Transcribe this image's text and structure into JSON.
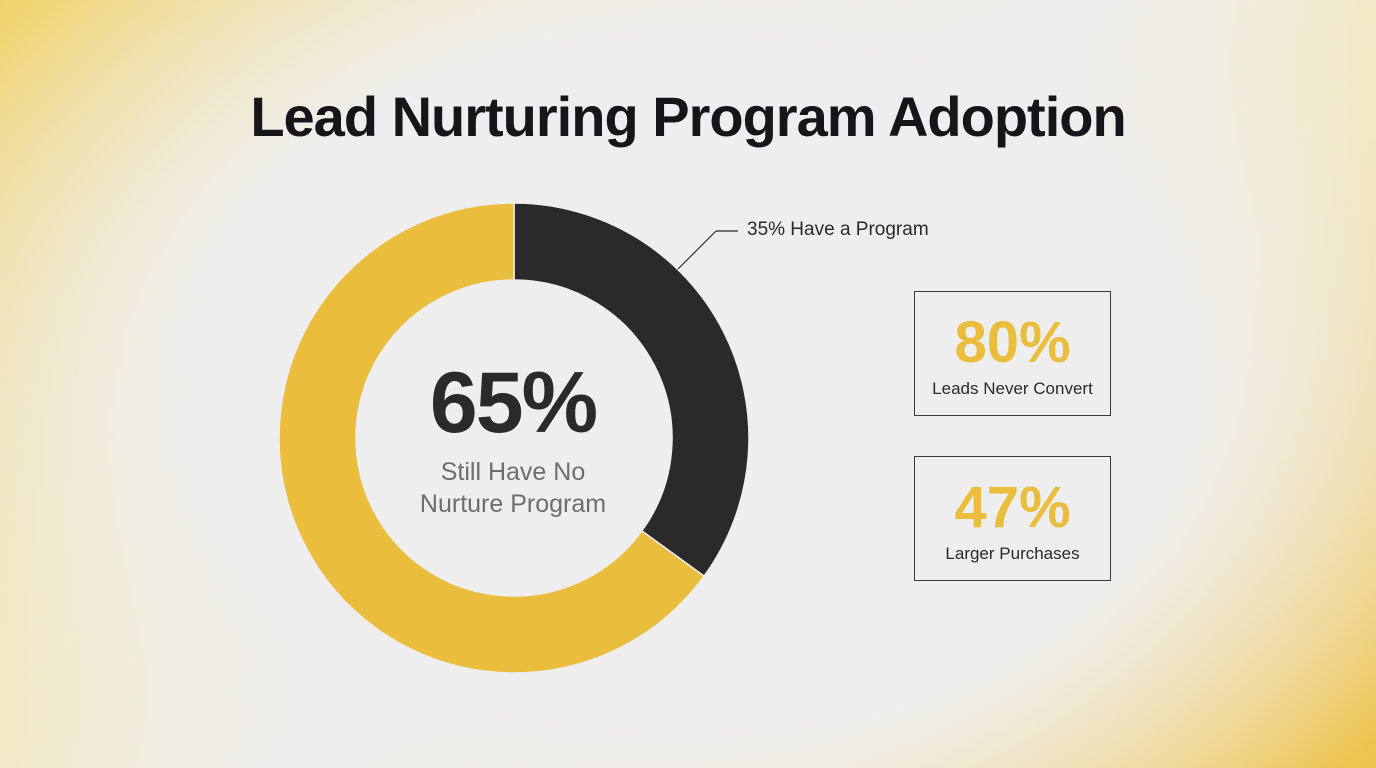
{
  "page": {
    "title": "Lead Nurturing Program Adoption"
  },
  "chart_data": {
    "type": "pie",
    "variant": "donut",
    "categories": [
      "Have a Program",
      "Still Have No Nurture Program"
    ],
    "values": [
      35,
      65
    ],
    "colors": [
      "#2b2a2b",
      "#ebbd3c"
    ],
    "center": {
      "value": "65%",
      "label_line1": "Still Have No",
      "label_line2": "Nurture Program"
    },
    "callout": "35% Have a Program"
  },
  "stats": [
    {
      "value": "80%",
      "label": "Leads Never Convert"
    },
    {
      "value": "47%",
      "label": "Larger Purchases"
    }
  ],
  "colors": {
    "accent": "#ebbd3c",
    "dark": "#2b2a2b",
    "background": "#efeeee"
  }
}
